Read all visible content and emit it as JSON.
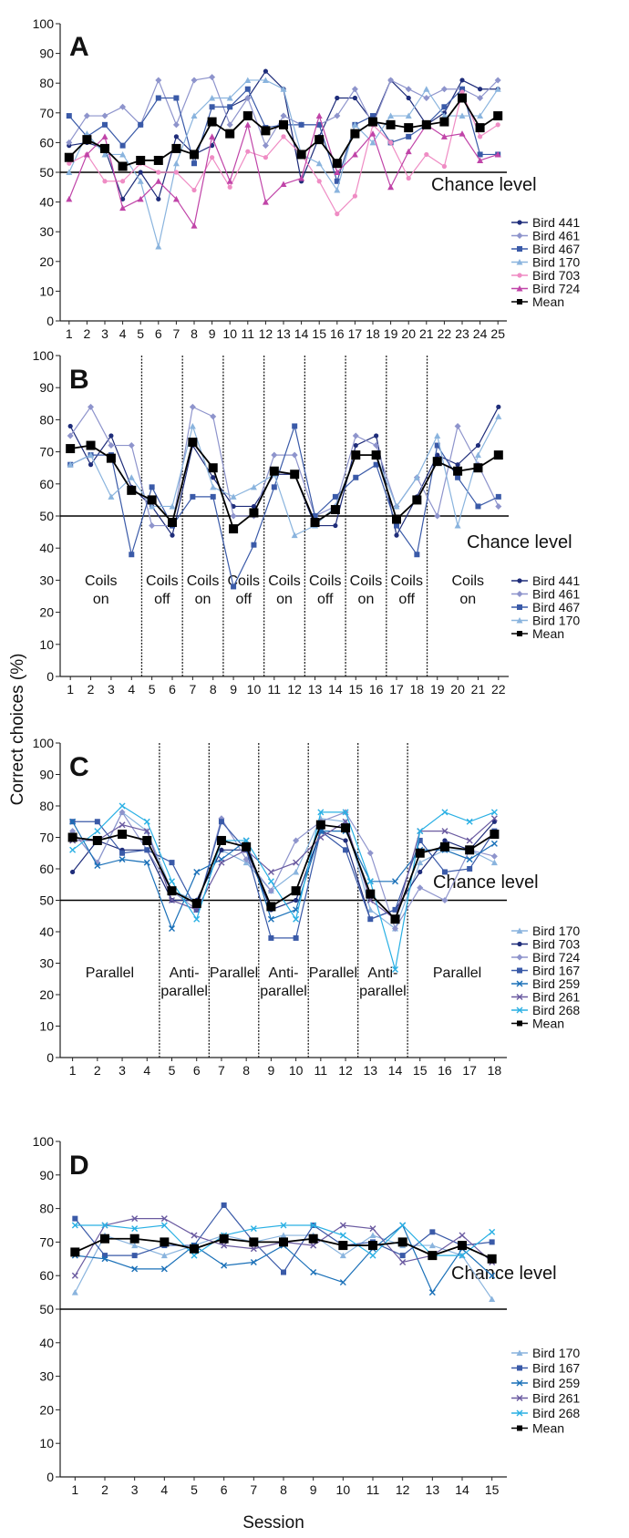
{
  "ylabel": "Correct choices (%)",
  "xlabel": "Session",
  "chart_data": [
    {
      "type": "line",
      "panel": "A",
      "chance_label": "Chance level",
      "chance_value": 50,
      "ylim": [
        0,
        100
      ],
      "yticks": [
        0,
        10,
        20,
        30,
        40,
        50,
        60,
        70,
        80,
        90,
        100
      ],
      "x": [
        1,
        2,
        3,
        4,
        5,
        6,
        7,
        8,
        9,
        10,
        11,
        12,
        13,
        14,
        15,
        16,
        17,
        18,
        19,
        20,
        21,
        22,
        23,
        24,
        25
      ],
      "dividers": [],
      "regions": [],
      "series": [
        {
          "name": "Bird 441",
          "color": "#1f2d7a",
          "marker": "circle",
          "values": [
            59,
            60,
            58,
            41,
            50,
            41,
            62,
            56,
            59,
            72,
            75,
            84,
            78,
            47,
            62,
            75,
            75,
            67,
            81,
            75,
            66,
            70,
            81,
            78,
            78
          ]
        },
        {
          "name": "Bird 461",
          "color": "#8e94cc",
          "marker": "diamond",
          "values": [
            60,
            69,
            69,
            72,
            66,
            81,
            66,
            81,
            82,
            66,
            75,
            59,
            69,
            66,
            66,
            69,
            78,
            66,
            81,
            78,
            75,
            78,
            78,
            75,
            81
          ]
        },
        {
          "name": "Bird 467",
          "color": "#3a5aa8",
          "marker": "square",
          "values": [
            69,
            62,
            66,
            59,
            66,
            75,
            75,
            53,
            72,
            72,
            78,
            65,
            66,
            66,
            66,
            47,
            66,
            69,
            60,
            62,
            66,
            72,
            78,
            56,
            56
          ]
        },
        {
          "name": "Bird 170",
          "color": "#8ab4de",
          "marker": "triangle",
          "values": [
            50,
            63,
            56,
            56,
            47,
            25,
            53,
            69,
            75,
            75,
            81,
            81,
            78,
            56,
            53,
            44,
            66,
            60,
            69,
            69,
            78,
            69,
            69,
            69,
            78
          ]
        },
        {
          "name": "Bird 703",
          "color": "#ef8cc4",
          "marker": "circle",
          "values": [
            53,
            56,
            47,
            47,
            53,
            50,
            50,
            44,
            55,
            45,
            57,
            55,
            62,
            56,
            47,
            36,
            42,
            66,
            60,
            48,
            56,
            52,
            77,
            62,
            66
          ]
        },
        {
          "name": "Bird 724",
          "color": "#c044a8",
          "marker": "triangle",
          "values": [
            41,
            56,
            62,
            38,
            41,
            47,
            41,
            32,
            62,
            47,
            66,
            40,
            46,
            48,
            69,
            50,
            56,
            63,
            45,
            57,
            66,
            62,
            63,
            54,
            56
          ]
        },
        {
          "name": "Mean",
          "color": "#000000",
          "marker": "bigsquare",
          "values": [
            55,
            61,
            58,
            52,
            54,
            54,
            58,
            56,
            67,
            63,
            69,
            64,
            66,
            56,
            61,
            53,
            63,
            67,
            66,
            65,
            66,
            67,
            75,
            65,
            69
          ]
        }
      ]
    },
    {
      "type": "line",
      "panel": "B",
      "chance_label": "Chance level",
      "chance_value": 50,
      "ylim": [
        0,
        100
      ],
      "yticks": [
        0,
        10,
        20,
        30,
        40,
        50,
        60,
        70,
        80,
        90,
        100
      ],
      "x": [
        1,
        2,
        3,
        4,
        5,
        6,
        7,
        8,
        9,
        10,
        11,
        12,
        13,
        14,
        15,
        16,
        17,
        18,
        19,
        20,
        21,
        22
      ],
      "dividers": [
        4.5,
        6.5,
        8.5,
        10.5,
        12.5,
        14.5,
        16.5,
        18.5
      ],
      "regions": [
        {
          "center": 2.5,
          "lines": [
            "Coils",
            "on"
          ]
        },
        {
          "center": 5.5,
          "lines": [
            "Coils",
            "off"
          ]
        },
        {
          "center": 7.5,
          "lines": [
            "Coils",
            "on"
          ]
        },
        {
          "center": 9.5,
          "lines": [
            "Coils",
            "off"
          ]
        },
        {
          "center": 11.5,
          "lines": [
            "Coils",
            "on"
          ]
        },
        {
          "center": 13.5,
          "lines": [
            "Coils",
            "off"
          ]
        },
        {
          "center": 15.5,
          "lines": [
            "Coils",
            "on"
          ]
        },
        {
          "center": 17.5,
          "lines": [
            "Coils",
            "off"
          ]
        },
        {
          "center": 20.5,
          "lines": [
            "Coils",
            "on"
          ]
        }
      ],
      "series": [
        {
          "name": "Bird 441",
          "color": "#1f2d7a",
          "marker": "circle",
          "values": [
            78,
            66,
            75,
            59,
            53,
            44,
            72,
            62,
            53,
            53,
            63,
            63,
            47,
            47,
            72,
            75,
            44,
            56,
            69,
            66,
            72,
            84
          ]
        },
        {
          "name": "Bird 461",
          "color": "#8e94cc",
          "marker": "diamond",
          "values": [
            75,
            84,
            72,
            72,
            47,
            47,
            84,
            81,
            50,
            50,
            69,
            69,
            50,
            53,
            75,
            72,
            53,
            62,
            50,
            78,
            66,
            53
          ]
        },
        {
          "name": "Bird 467",
          "color": "#3a5aa8",
          "marker": "square",
          "values": [
            66,
            69,
            69,
            38,
            59,
            47,
            56,
            56,
            28,
            41,
            59,
            78,
            50,
            56,
            62,
            66,
            47,
            38,
            72,
            62,
            53,
            56
          ]
        },
        {
          "name": "Bird 170",
          "color": "#8ab4de",
          "marker": "triangle",
          "values": [
            66,
            69,
            56,
            62,
            53,
            53,
            78,
            59,
            56,
            59,
            63,
            44,
            47,
            53,
            69,
            69,
            53,
            62,
            75,
            47,
            69,
            81
          ]
        },
        {
          "name": "Mean",
          "color": "#000000",
          "marker": "bigsquare",
          "values": [
            71,
            72,
            68,
            58,
            55,
            48,
            73,
            65,
            46,
            51,
            64,
            63,
            48,
            52,
            69,
            69,
            49,
            55,
            67,
            64,
            65,
            69
          ]
        }
      ]
    },
    {
      "type": "line",
      "panel": "C",
      "chance_label": "Chance level",
      "chance_value": 50,
      "ylim": [
        0,
        100
      ],
      "yticks": [
        0,
        10,
        20,
        30,
        40,
        50,
        60,
        70,
        80,
        90,
        100
      ],
      "x": [
        1,
        2,
        3,
        4,
        5,
        6,
        7,
        8,
        9,
        10,
        11,
        12,
        13,
        14,
        15,
        16,
        17,
        18
      ],
      "dividers": [
        4.5,
        6.5,
        8.5,
        10.5,
        12.5,
        14.5
      ],
      "regions": [
        {
          "center": 2.5,
          "lines": [
            "Parallel"
          ]
        },
        {
          "center": 5.5,
          "lines": [
            "Anti-",
            "parallel"
          ]
        },
        {
          "center": 7.5,
          "lines": [
            "Parallel"
          ]
        },
        {
          "center": 9.5,
          "lines": [
            "Anti-",
            "parallel"
          ]
        },
        {
          "center": 11.5,
          "lines": [
            "Parallel"
          ]
        },
        {
          "center": 13.5,
          "lines": [
            "Anti-",
            "parallel"
          ]
        },
        {
          "center": 16.5,
          "lines": [
            "Parallel"
          ]
        }
      ],
      "series": [
        {
          "name": "Bird 170",
          "color": "#8ab4de",
          "marker": "triangle",
          "values": [
            72,
            62,
            78,
            72,
            53,
            50,
            66,
            62,
            53,
            59,
            76,
            75,
            47,
            41,
            62,
            66,
            66,
            62
          ]
        },
        {
          "name": "Bird 703",
          "color": "#1f2d7a",
          "marker": "circle",
          "values": [
            59,
            69,
            66,
            66,
            50,
            50,
            66,
            66,
            47,
            50,
            72,
            69,
            44,
            47,
            59,
            69,
            66,
            75
          ]
        },
        {
          "name": "Bird 724",
          "color": "#8e94cc",
          "marker": "diamond",
          "values": [
            72,
            62,
            78,
            66,
            53,
            47,
            76,
            63,
            53,
            69,
            75,
            78,
            65,
            41,
            54,
            50,
            66,
            64
          ]
        },
        {
          "name": "Bird 167",
          "color": "#3a5aa8",
          "marker": "square",
          "values": [
            75,
            75,
            65,
            66,
            62,
            47,
            75,
            66,
            38,
            38,
            72,
            66,
            44,
            47,
            69,
            59,
            60,
            72
          ]
        },
        {
          "name": "Bird 259",
          "color": "#1a70b8",
          "marker": "x",
          "values": [
            75,
            61,
            63,
            62,
            41,
            59,
            63,
            69,
            44,
            47,
            72,
            72,
            56,
            56,
            66,
            66,
            63,
            68
          ]
        },
        {
          "name": "Bird 261",
          "color": "#6a5aa0",
          "marker": "x",
          "values": [
            69,
            69,
            74,
            72,
            50,
            47,
            62,
            66,
            59,
            62,
            70,
            75,
            50,
            44,
            72,
            72,
            69,
            76
          ]
        },
        {
          "name": "Bird 268",
          "color": "#2ab0e4",
          "marker": "x",
          "values": [
            66,
            72,
            80,
            75,
            56,
            44,
            69,
            69,
            56,
            44,
            78,
            78,
            56,
            28,
            72,
            78,
            75,
            78
          ]
        },
        {
          "name": "Mean",
          "color": "#000000",
          "marker": "bigsquare",
          "values": [
            70,
            69,
            71,
            69,
            53,
            49,
            69,
            67,
            48,
            53,
            74,
            73,
            52,
            44,
            65,
            67,
            66,
            71
          ]
        }
      ]
    },
    {
      "type": "line",
      "panel": "D",
      "chance_label": "Chance level",
      "chance_value": 50,
      "ylim": [
        0,
        100
      ],
      "yticks": [
        0,
        10,
        20,
        30,
        40,
        50,
        60,
        70,
        80,
        90,
        100
      ],
      "x": [
        1,
        2,
        3,
        4,
        5,
        6,
        7,
        8,
        9,
        10,
        11,
        12,
        13,
        14,
        15
      ],
      "dividers": [],
      "regions": [],
      "series": [
        {
          "name": "Bird 170",
          "color": "#8ab4de",
          "marker": "triangle",
          "values": [
            55,
            72,
            69,
            66,
            69,
            72,
            70,
            72,
            72,
            66,
            72,
            69,
            69,
            66,
            53
          ]
        },
        {
          "name": "Bird 167",
          "color": "#3a5aa8",
          "marker": "square",
          "values": [
            77,
            66,
            66,
            69,
            69,
            81,
            70,
            61,
            75,
            69,
            70,
            66,
            73,
            69,
            70
          ]
        },
        {
          "name": "Bird 259",
          "color": "#1a70b8",
          "marker": "x",
          "values": [
            66,
            65,
            62,
            62,
            69,
            63,
            64,
            69,
            61,
            58,
            68,
            75,
            55,
            68,
            60
          ]
        },
        {
          "name": "Bird 261",
          "color": "#6a5aa0",
          "marker": "x",
          "values": [
            60,
            75,
            77,
            77,
            72,
            69,
            68,
            70,
            69,
            75,
            74,
            64,
            66,
            72,
            64
          ]
        },
        {
          "name": "Bird 268",
          "color": "#2ab0e4",
          "marker": "x",
          "values": [
            75,
            75,
            74,
            75,
            66,
            72,
            74,
            75,
            75,
            72,
            66,
            75,
            66,
            66,
            73
          ]
        },
        {
          "name": "Mean",
          "color": "#000000",
          "marker": "bigsquare",
          "values": [
            67,
            71,
            71,
            70,
            68,
            71,
            70,
            70,
            71,
            69,
            69,
            70,
            66,
            69,
            65
          ]
        }
      ]
    }
  ]
}
